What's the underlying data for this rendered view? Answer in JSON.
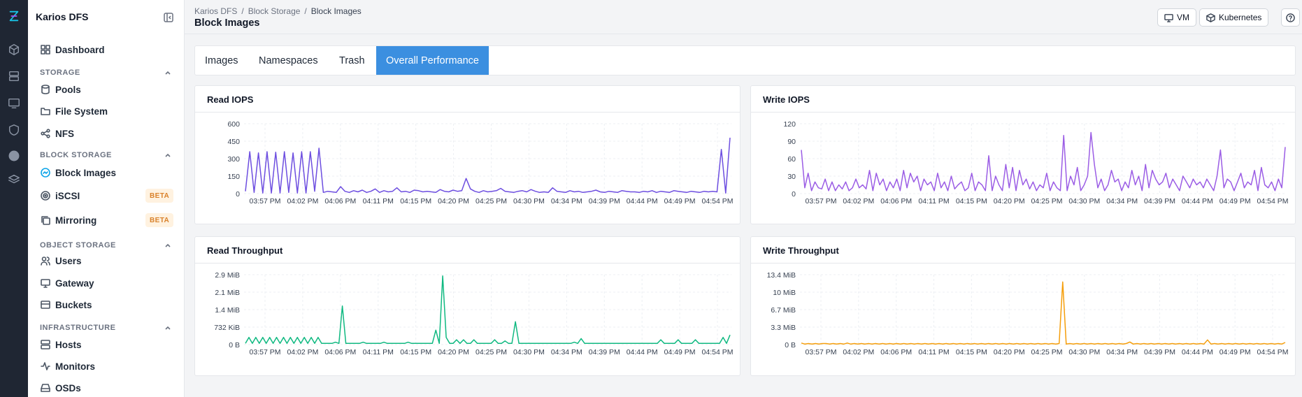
{
  "sidebar": {
    "brand": "Karios DFS",
    "dashboard": "Dashboard",
    "sections": {
      "storage": "STORAGE",
      "block_storage": "BLOCK STORAGE",
      "object_storage": "OBJECT STORAGE",
      "infrastructure": "INFRASTRUCTURE"
    },
    "items": {
      "pools": "Pools",
      "file_system": "File System",
      "nfs": "NFS",
      "block_images": "Block Images",
      "iscsi": "iSCSI",
      "mirroring": "Mirroring",
      "users": "Users",
      "gateway": "Gateway",
      "buckets": "Buckets",
      "hosts": "Hosts",
      "monitors": "Monitors",
      "osds": "OSDs"
    },
    "beta_label": "BETA"
  },
  "header": {
    "breadcrumb": [
      "Karios DFS",
      "Block Storage",
      "Block Images"
    ],
    "separator": "/",
    "title": "Block Images",
    "vm_label": "VM",
    "kubernetes_label": "Kubernetes"
  },
  "tabs": [
    "Images",
    "Namespaces",
    "Trash",
    "Overall Performance"
  ],
  "active_tab": "Overall Performance",
  "time_ticks": [
    "03:57 PM",
    "04:02 PM",
    "04:06 PM",
    "04:11 PM",
    "04:15 PM",
    "04:20 PM",
    "04:25 PM",
    "04:30 PM",
    "04:34 PM",
    "04:39 PM",
    "04:44 PM",
    "04:49 PM",
    "04:54 PM"
  ],
  "colors": {
    "read_iops": "#6d4ee0",
    "write_iops": "#9b5de5",
    "read_tp": "#10b981",
    "write_tp": "#f59e0b",
    "accent": "#3b8fe0",
    "beta": "#d9822b"
  },
  "chart_data": [
    {
      "title": "Read IOPS",
      "type": "line",
      "ylim": [
        0,
        600
      ],
      "yticks": [
        "0",
        "150",
        "300",
        "450",
        "600"
      ],
      "series": [
        {
          "values": [
            20,
            360,
            10,
            350,
            5,
            360,
            5,
            355,
            5,
            360,
            10,
            350,
            5,
            360,
            5,
            360,
            20,
            390,
            10,
            20,
            15,
            10,
            60,
            20,
            10,
            25,
            15,
            30,
            10,
            20,
            40,
            10,
            25,
            15,
            20,
            50,
            15,
            20,
            10,
            30,
            25,
            15,
            20,
            15,
            10,
            35,
            20,
            15,
            30,
            20,
            25,
            130,
            40,
            20,
            10,
            25,
            15,
            20,
            25,
            45,
            20,
            15,
            10,
            20,
            25,
            15,
            35,
            20,
            10,
            15,
            10,
            50,
            20,
            15,
            10,
            25,
            15,
            20,
            10,
            15,
            20,
            30,
            15,
            10,
            20,
            15,
            10,
            25,
            20,
            15,
            15,
            10,
            20,
            15,
            25,
            10,
            20,
            15,
            10,
            25,
            20,
            15,
            10,
            20,
            15,
            10,
            20,
            15,
            20,
            15,
            380,
            5,
            480
          ]
        }
      ]
    },
    {
      "title": "Write IOPS",
      "type": "line",
      "ylim": [
        0,
        120
      ],
      "yticks": [
        "0",
        "30",
        "60",
        "90",
        "120"
      ],
      "series": [
        {
          "values": [
            75,
            10,
            35,
            5,
            20,
            10,
            8,
            25,
            5,
            20,
            5,
            15,
            8,
            20,
            5,
            10,
            25,
            10,
            15,
            8,
            40,
            5,
            35,
            15,
            25,
            5,
            20,
            10,
            25,
            5,
            40,
            10,
            35,
            20,
            30,
            5,
            25,
            15,
            20,
            5,
            35,
            10,
            20,
            5,
            30,
            8,
            15,
            20,
            5,
            10,
            35,
            5,
            20,
            15,
            5,
            65,
            5,
            30,
            15,
            5,
            50,
            10,
            45,
            5,
            40,
            15,
            25,
            8,
            20,
            5,
            15,
            10,
            35,
            5,
            20,
            10,
            5,
            100,
            5,
            30,
            15,
            45,
            5,
            15,
            30,
            105,
            50,
            10,
            25,
            5,
            15,
            40,
            20,
            25,
            5,
            20,
            10,
            40,
            15,
            30,
            5,
            50,
            10,
            40,
            25,
            15,
            20,
            35,
            10,
            25,
            15,
            5,
            30,
            20,
            10,
            25,
            15,
            20,
            10,
            25,
            15,
            5,
            30,
            75,
            10,
            25,
            20,
            5,
            20,
            35,
            10,
            20,
            15,
            40,
            5,
            45,
            15,
            10,
            20,
            5,
            25,
            10,
            80
          ]
        }
      ]
    },
    {
      "title": "Read Throughput",
      "type": "line",
      "ylim": [
        0,
        2.9
      ],
      "yticks": [
        "0 B",
        "732 KiB",
        "1.4 MiB",
        "2.1 MiB",
        "2.9 MiB"
      ],
      "ylabel_unit": "MiB",
      "series": [
        {
          "values": [
            0.05,
            0.3,
            0.05,
            0.3,
            0.05,
            0.3,
            0.05,
            0.3,
            0.05,
            0.3,
            0.05,
            0.3,
            0.05,
            0.3,
            0.05,
            0.3,
            0.05,
            0.3,
            0.05,
            0.3,
            0.05,
            0.3,
            0.05,
            0.05,
            0.05,
            0.05,
            0.1,
            0.05,
            1.6,
            0.05,
            0.05,
            0.05,
            0.05,
            0.05,
            0.1,
            0.05,
            0.05,
            0.05,
            0.05,
            0.05,
            0.1,
            0.05,
            0.05,
            0.05,
            0.05,
            0.05,
            0.05,
            0.1,
            0.05,
            0.05,
            0.05,
            0.05,
            0.05,
            0.05,
            0.05,
            0.6,
            0.05,
            2.85,
            0.3,
            0.05,
            0.05,
            0.2,
            0.05,
            0.2,
            0.05,
            0.05,
            0.2,
            0.05,
            0.05,
            0.05,
            0.05,
            0.05,
            0.2,
            0.05,
            0.05,
            0.15,
            0.05,
            0.05,
            0.95,
            0.05,
            0.05,
            0.05,
            0.05,
            0.05,
            0.05,
            0.05,
            0.05,
            0.05,
            0.05,
            0.05,
            0.05,
            0.05,
            0.05,
            0.05,
            0.05,
            0.1,
            0.05,
            0.25,
            0.05,
            0.05,
            0.05,
            0.05,
            0.05,
            0.05,
            0.05,
            0.05,
            0.05,
            0.05,
            0.05,
            0.05,
            0.05,
            0.05,
            0.05,
            0.05,
            0.05,
            0.05,
            0.05,
            0.05,
            0.05,
            0.05,
            0.2,
            0.05,
            0.05,
            0.05,
            0.05,
            0.2,
            0.05,
            0.05,
            0.05,
            0.05,
            0.2,
            0.05,
            0.05,
            0.05,
            0.05,
            0.05,
            0.05,
            0.05,
            0.3,
            0.05,
            0.4
          ]
        }
      ]
    },
    {
      "title": "Write Throughput",
      "type": "line",
      "ylim": [
        0,
        13.4
      ],
      "yticks": [
        "0 B",
        "3.3 MiB",
        "6.7 MiB",
        "10 MiB",
        "13.4 MiB"
      ],
      "ylabel_unit": "MiB",
      "series": [
        {
          "values": [
            0.3,
            0.1,
            0.2,
            0.1,
            0.2,
            0.1,
            0.2,
            0.2,
            0.1,
            0.2,
            0.1,
            0.2,
            0.1,
            0.3,
            0.1,
            0.2,
            0.1,
            0.2,
            0.1,
            0.2,
            0.1,
            0.2,
            0.1,
            0.2,
            0.1,
            0.2,
            0.1,
            0.2,
            0.1,
            0.2,
            0.1,
            0.2,
            0.1,
            0.2,
            0.1,
            0.2,
            0.1,
            0.2,
            0.1,
            0.2,
            0.1,
            0.2,
            0.1,
            0.2,
            0.1,
            0.2,
            0.1,
            0.2,
            0.1,
            0.2,
            0.1,
            0.2,
            0.1,
            0.2,
            0.1,
            0.2,
            0.1,
            0.2,
            0.1,
            0.2,
            0.1,
            0.2,
            0.1,
            0.2,
            0.1,
            0.2,
            0.1,
            0.2,
            0.1,
            0.2,
            0.1,
            0.2,
            0.1,
            0.2,
            12,
            0.1,
            0.2,
            0.1,
            0.2,
            0.1,
            0.2,
            0.1,
            0.2,
            0.1,
            0.2,
            0.1,
            0.2,
            0.1,
            0.2,
            0.1,
            0.2,
            0.1,
            0.2,
            0.5,
            0.1,
            0.2,
            0.1,
            0.2,
            0.1,
            0.2,
            0.1,
            0.2,
            0.1,
            0.2,
            0.1,
            0.2,
            0.1,
            0.2,
            0.1,
            0.2,
            0.1,
            0.2,
            0.1,
            0.2,
            0.1,
            0.9,
            0.1,
            0.2,
            0.1,
            0.2,
            0.1,
            0.2,
            0.1,
            0.2,
            0.1,
            0.2,
            0.1,
            0.2,
            0.1,
            0.2,
            0.1,
            0.2,
            0.1,
            0.2,
            0.1,
            0.2,
            0.1,
            0.4
          ]
        }
      ]
    }
  ]
}
